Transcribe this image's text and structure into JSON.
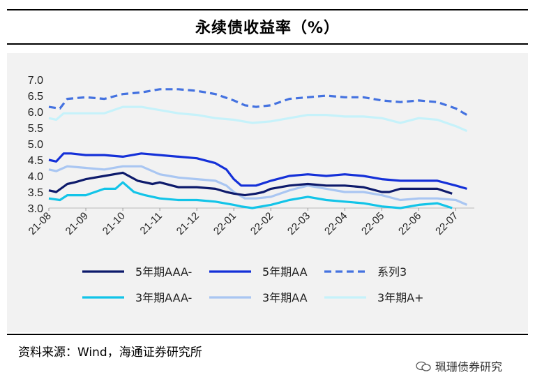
{
  "title": "永续债收益率（%）",
  "source": "资料来源：Wind，海通证券研究所",
  "watermark": "珮珊债券研究",
  "watermark_icon": "wechat-icon",
  "chart_data": {
    "type": "line",
    "ylim": [
      3.0,
      7.0
    ],
    "yticks": [
      "7.0",
      "6.5",
      "6.0",
      "5.5",
      "5.0",
      "4.5",
      "4.0",
      "3.5",
      "3.0"
    ],
    "xticks": [
      "21-08",
      "21-09",
      "21-10",
      "21-11",
      "21-12",
      "22-01",
      "22-02",
      "22-03",
      "22-04",
      "22-05",
      "22-06",
      "22-07"
    ],
    "x_range_months": [
      0,
      11.5
    ],
    "legend_placement": "bottom",
    "grid": false,
    "series": [
      {
        "name": "5年期AAA-",
        "color": "#0d1a6b",
        "style": "solid",
        "x": [
          0,
          0.2,
          0.5,
          0.7,
          1.0,
          1.5,
          2.0,
          2.4,
          2.8,
          3.0,
          3.5,
          4.0,
          4.5,
          4.8,
          5.0,
          5.3,
          5.6,
          5.8,
          6.0,
          6.5,
          7.0,
          7.5,
          8.0,
          8.5,
          9.0,
          9.2,
          9.5,
          10.0,
          10.5,
          10.9
        ],
        "values": [
          3.55,
          3.5,
          3.75,
          3.8,
          3.9,
          4.0,
          4.1,
          3.85,
          3.75,
          3.8,
          3.65,
          3.65,
          3.6,
          3.5,
          3.45,
          3.4,
          3.45,
          3.5,
          3.6,
          3.7,
          3.75,
          3.7,
          3.7,
          3.65,
          3.5,
          3.5,
          3.6,
          3.6,
          3.6,
          3.45
        ]
      },
      {
        "name": "5年期AA",
        "color": "#1430d8",
        "style": "solid",
        "x": [
          0,
          0.2,
          0.4,
          0.6,
          1.0,
          1.5,
          2.0,
          2.5,
          3.0,
          3.5,
          4.0,
          4.5,
          4.8,
          5.0,
          5.2,
          5.4,
          5.6,
          6.0,
          6.5,
          7.0,
          7.5,
          8.0,
          8.5,
          9.0,
          9.5,
          10.0,
          10.5,
          11.0,
          11.3
        ],
        "values": [
          4.5,
          4.45,
          4.7,
          4.7,
          4.65,
          4.65,
          4.6,
          4.7,
          4.65,
          4.6,
          4.55,
          4.4,
          4.2,
          3.9,
          3.7,
          3.7,
          3.7,
          3.85,
          4.0,
          4.05,
          4.0,
          4.05,
          4.0,
          3.9,
          3.85,
          3.85,
          3.85,
          3.7,
          3.6
        ]
      },
      {
        "name": "系列3",
        "color": "#4472e0",
        "style": "dash",
        "x": [
          0,
          0.3,
          0.5,
          1.0,
          1.5,
          2.0,
          2.5,
          3.0,
          3.5,
          4.0,
          4.5,
          5.0,
          5.3,
          5.6,
          6.0,
          6.5,
          7.0,
          7.5,
          8.0,
          8.5,
          9.0,
          9.5,
          10.0,
          10.5,
          11.0,
          11.3
        ],
        "values": [
          6.15,
          6.1,
          6.4,
          6.45,
          6.4,
          6.55,
          6.6,
          6.7,
          6.7,
          6.65,
          6.55,
          6.35,
          6.2,
          6.15,
          6.2,
          6.4,
          6.45,
          6.5,
          6.45,
          6.45,
          6.35,
          6.3,
          6.35,
          6.3,
          6.1,
          5.9
        ]
      },
      {
        "name": "3年期AAA-",
        "color": "#12c4e8",
        "style": "solid",
        "x": [
          0,
          0.3,
          0.5,
          1.0,
          1.5,
          1.8,
          2.0,
          2.3,
          2.6,
          3.0,
          3.5,
          4.0,
          4.5,
          5.0,
          5.2,
          5.5,
          6.0,
          6.5,
          7.0,
          7.5,
          8.0,
          8.5,
          9.0,
          9.5,
          10.0,
          10.5,
          10.9
        ],
        "values": [
          3.3,
          3.25,
          3.4,
          3.4,
          3.6,
          3.6,
          3.8,
          3.5,
          3.4,
          3.3,
          3.25,
          3.25,
          3.2,
          3.1,
          3.05,
          3.0,
          3.1,
          3.25,
          3.35,
          3.25,
          3.2,
          3.15,
          3.05,
          3.0,
          3.1,
          3.15,
          3.0
        ]
      },
      {
        "name": "3年期AA",
        "color": "#a9c6f2",
        "style": "solid",
        "x": [
          0,
          0.2,
          0.5,
          1.0,
          1.5,
          2.0,
          2.5,
          3.0,
          3.5,
          4.0,
          4.5,
          4.8,
          5.0,
          5.3,
          5.6,
          6.0,
          6.5,
          7.0,
          7.5,
          8.0,
          8.5,
          9.0,
          9.5,
          10.0,
          10.5,
          11.0,
          11.3
        ],
        "values": [
          4.2,
          4.15,
          4.3,
          4.25,
          4.2,
          4.3,
          4.3,
          4.05,
          3.95,
          3.9,
          3.85,
          3.7,
          3.5,
          3.3,
          3.3,
          3.35,
          3.55,
          3.7,
          3.6,
          3.5,
          3.5,
          3.4,
          3.25,
          3.3,
          3.3,
          3.25,
          3.1
        ]
      },
      {
        "name": "3年期A+",
        "color": "#c6f2fa",
        "style": "solid",
        "x": [
          0,
          0.2,
          0.4,
          1.0,
          1.5,
          2.0,
          2.5,
          3.0,
          3.5,
          4.0,
          4.5,
          5.0,
          5.5,
          6.0,
          6.5,
          7.0,
          7.5,
          8.0,
          8.5,
          9.0,
          9.5,
          10.0,
          10.5,
          11.0,
          11.3
        ],
        "values": [
          5.8,
          5.75,
          5.95,
          5.95,
          5.95,
          6.15,
          6.15,
          6.05,
          5.95,
          5.9,
          5.8,
          5.75,
          5.65,
          5.7,
          5.8,
          5.9,
          5.9,
          5.85,
          5.85,
          5.8,
          5.65,
          5.8,
          5.75,
          5.55,
          5.4
        ]
      }
    ]
  }
}
